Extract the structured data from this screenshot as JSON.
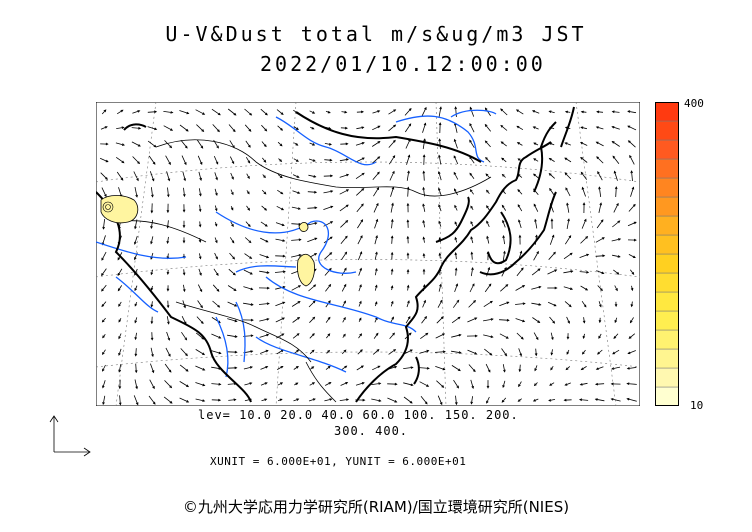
{
  "title": {
    "line1": "U-V&Dust total m/s&ug/m3 JST",
    "line2": "2022/01/10.12:00:00"
  },
  "legend": {
    "levels_line1": "lev= 10.0 20.0 40.0 60.0 100. 150. 200.",
    "levels_line2": "300. 400.",
    "levels": [
      10,
      20,
      40,
      60,
      100,
      150,
      200,
      300,
      400
    ],
    "units_line": "XUNIT = 6.000E+01, YUNIT = 6.000E+01"
  },
  "colorbar": {
    "max_label": "400",
    "min_label": "10",
    "colors": [
      "#ffffd0",
      "#fff8b0",
      "#fff590",
      "#fff270",
      "#ffee50",
      "#ffe840",
      "#ffdd30",
      "#ffd020",
      "#ffc020",
      "#ffb020",
      "#ff9820",
      "#ff8520",
      "#ff7020",
      "#ff5a20",
      "#ff4a15",
      "#ff3a10"
    ]
  },
  "colors": {
    "rivers": "#1560ff",
    "coast": "#000000",
    "dust_fill": "#fff5a0",
    "background": "#ffffff"
  },
  "copyright": "©九州大学応用力学研究所(RIAM)/国立環境研究所(NIES)"
}
